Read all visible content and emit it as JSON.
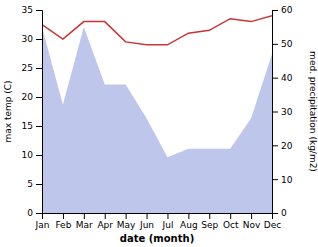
{
  "chart_data": {
    "type": "line",
    "xlabel": "date (month)",
    "ylabel": "max temp (C)",
    "y2label": "med. precipitation (kg/m2)",
    "categories": [
      "Jan",
      "Feb",
      "Mar",
      "Apr",
      "May",
      "Jun",
      "Jul",
      "Aug",
      "Sep",
      "Oct",
      "Nov",
      "Dec"
    ],
    "series": [
      {
        "type": "area",
        "axis": "y2",
        "color": "#b3bce8",
        "values": [
          55.0,
          32.0,
          55.0,
          38.0,
          38.0,
          28.0,
          16.5,
          19.0,
          19.0,
          19.0,
          28.0,
          47.0
        ]
      },
      {
        "type": "line",
        "color": "#cc3333",
        "values": [
          32.5,
          30.0,
          33.0,
          33.0,
          29.5,
          29.0,
          29.0,
          31.0,
          31.5,
          33.5,
          33.0,
          34.0
        ]
      }
    ],
    "ylim": [
      0,
      35
    ],
    "yticks": [
      0,
      5,
      10,
      15,
      20,
      25,
      30,
      35
    ],
    "y2lim": [
      0,
      60
    ],
    "y2ticks": [
      0,
      10,
      20,
      30,
      40,
      50,
      60
    ]
  }
}
